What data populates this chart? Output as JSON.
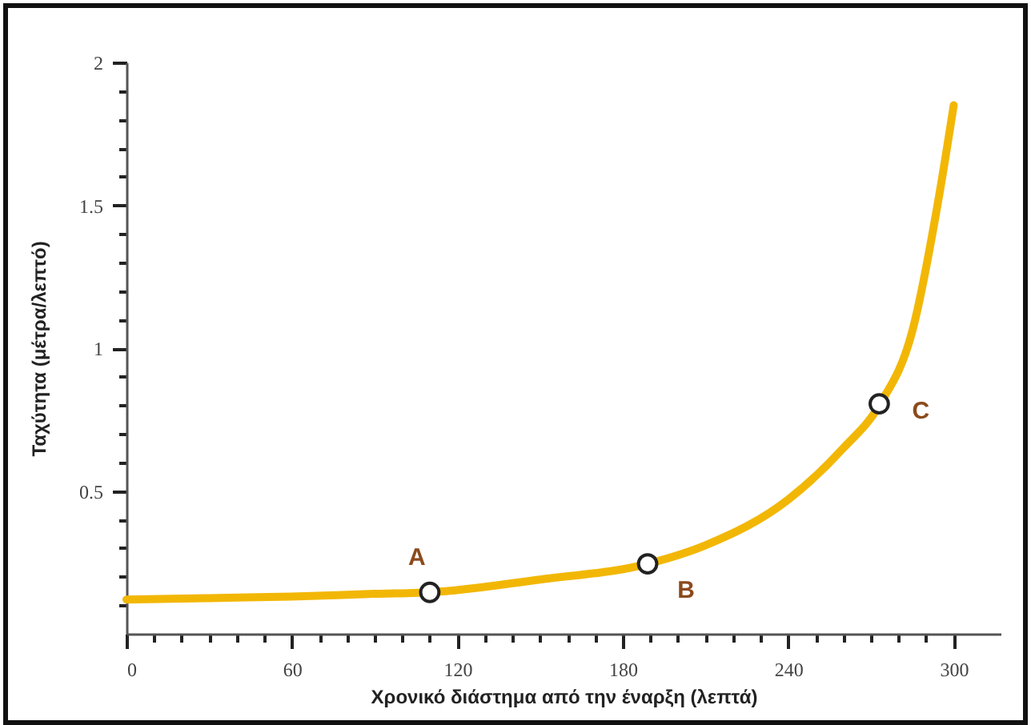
{
  "chart_data": {
    "type": "line",
    "xlabel": "Χρονικό διάστημα από την έναρξη (λεπτά)",
    "ylabel": "Ταχύτητα (μέτρα/λεπτό)",
    "xlim": [
      0,
      317
    ],
    "ylim": [
      0,
      2
    ],
    "xticks": [
      0,
      {
        "value": 10,
        "label": null
      },
      {
        "value": 20,
        "label": null
      },
      {
        "value": 30,
        "label": null
      },
      {
        "value": 40,
        "label": null
      },
      {
        "value": 50,
        "label": null
      },
      60,
      {
        "value": 70,
        "label": null
      },
      {
        "value": 80,
        "label": null
      },
      {
        "value": 90,
        "label": null
      },
      {
        "value": 100,
        "label": null
      },
      {
        "value": 110,
        "label": null
      },
      120,
      {
        "value": 130,
        "label": null
      },
      {
        "value": 140,
        "label": null
      },
      {
        "value": 150,
        "label": null
      },
      {
        "value": 160,
        "label": null
      },
      {
        "value": 170,
        "label": null
      },
      180,
      {
        "value": 190,
        "label": null
      },
      {
        "value": 200,
        "label": null
      },
      {
        "value": 210,
        "label": null
      },
      {
        "value": 220,
        "label": null
      },
      {
        "value": 230,
        "label": null
      },
      240,
      {
        "value": 250,
        "label": null
      },
      {
        "value": 260,
        "label": null
      },
      {
        "value": 270,
        "label": null
      },
      {
        "value": 280,
        "label": null
      },
      {
        "value": 290,
        "label": null
      },
      300
    ],
    "yticks": [
      {
        "value": 0.1,
        "label": null
      },
      {
        "value": 0.2,
        "label": null
      },
      {
        "value": 0.3,
        "label": null
      },
      {
        "value": 0.4,
        "label": null
      },
      0.5,
      {
        "value": 0.6,
        "label": null
      },
      {
        "value": 0.7,
        "label": null
      },
      {
        "value": 0.8,
        "label": null
      },
      {
        "value": 0.9,
        "label": null
      },
      1,
      {
        "value": 1.1,
        "label": null
      },
      {
        "value": 1.2,
        "label": null
      },
      {
        "value": 1.3,
        "label": null
      },
      {
        "value": 1.4,
        "label": null
      },
      1.5,
      {
        "value": 1.6,
        "label": null
      },
      {
        "value": 1.7,
        "label": null
      },
      {
        "value": 1.8,
        "label": null
      },
      {
        "value": 1.9,
        "label": null
      },
      2
    ],
    "grid": false,
    "series": [
      {
        "color": "#f2b705",
        "x": [
          0,
          30,
          60,
          90,
          110,
          150,
          189,
          210,
          240,
          260,
          273,
          285,
          295,
          300
        ],
        "values": [
          0.12,
          0.125,
          0.13,
          0.14,
          0.145,
          0.19,
          0.245,
          0.31,
          0.47,
          0.65,
          0.8,
          1.06,
          1.55,
          1.85
        ]
      },
      {
        "type": "scatter",
        "marker": "circle",
        "color": "#ffffff",
        "x": [
          110,
          189,
          273
        ],
        "values": [
          0.145,
          0.245,
          0.805
        ]
      }
    ],
    "annotations": [
      {
        "text": "A",
        "x": 110,
        "y": 0.145
      },
      {
        "text": "B",
        "x": 189,
        "y": 0.245
      },
      {
        "text": "C",
        "x": 273,
        "y": 0.805
      }
    ]
  }
}
